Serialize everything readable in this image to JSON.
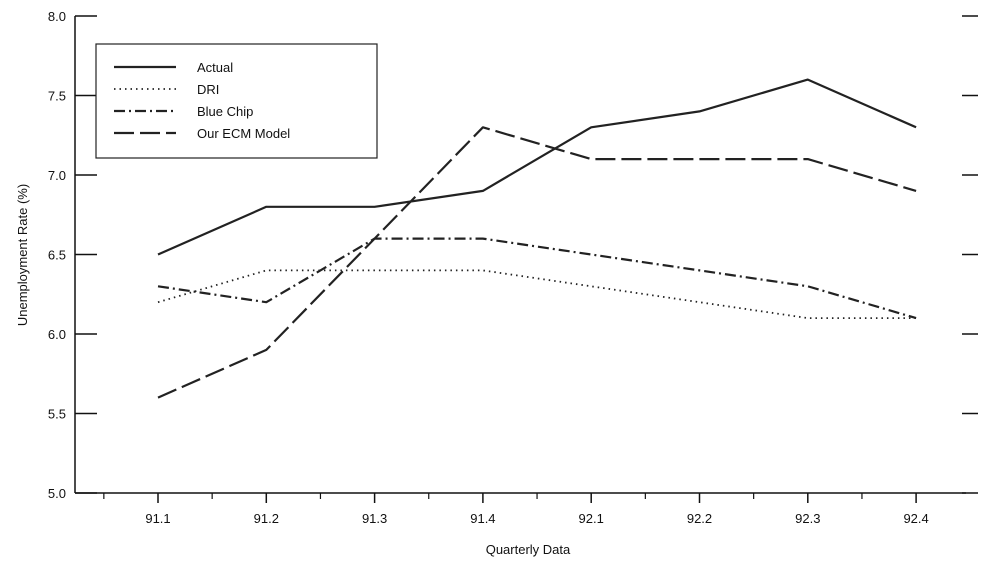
{
  "chart_data": {
    "type": "line",
    "xlabel": "Quarterly Data",
    "ylabel": "Unemployment Rate (%)",
    "categories": [
      "91.1",
      "91.2",
      "91.3",
      "91.4",
      "92.1",
      "92.2",
      "92.3",
      "92.4"
    ],
    "ylim": [
      5.0,
      8.0
    ],
    "yticks": [
      "5.0",
      "5.5",
      "6.0",
      "6.5",
      "7.0",
      "7.5",
      "8.0"
    ],
    "grid": false,
    "legend_position": "top-left",
    "series": [
      {
        "name": "Actual",
        "style": "solid",
        "values": [
          6.5,
          6.8,
          6.8,
          6.9,
          7.3,
          7.4,
          7.6,
          7.3
        ]
      },
      {
        "name": "DRI",
        "style": "dotted",
        "values": [
          6.2,
          6.4,
          6.4,
          6.4,
          6.3,
          6.2,
          6.1,
          6.1
        ]
      },
      {
        "name": "Blue Chip",
        "style": "dash-dot",
        "values": [
          6.3,
          6.2,
          6.6,
          6.6,
          6.5,
          6.4,
          6.3,
          6.1
        ]
      },
      {
        "name": "Our ECM Model",
        "style": "long-dash",
        "values": [
          5.6,
          5.9,
          6.6,
          7.3,
          7.1,
          7.1,
          7.1,
          6.9
        ]
      }
    ],
    "colors": {
      "line": "#222222",
      "background": "#ffffff"
    }
  }
}
